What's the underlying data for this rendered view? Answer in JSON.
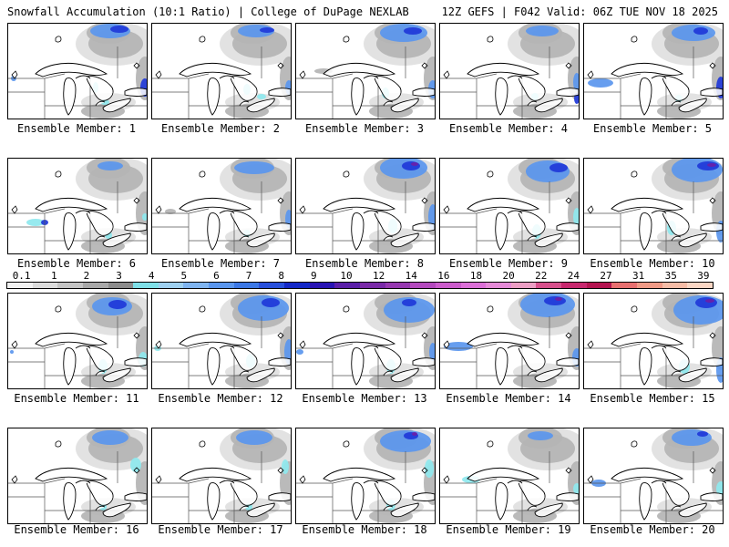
{
  "header": {
    "title_left": "Snowfall Accumulation (10:1 Ratio) | College of DuPage NEXLAB",
    "title_right": "12Z GEFS | F042 Valid: 06Z TUE NOV 18 2025"
  },
  "panel_label_prefix": "Ensemble Member: ",
  "panels": [
    {
      "member": "1",
      "label": "Ensemble Member: 1"
    },
    {
      "member": "2",
      "label": "Ensemble Member: 2"
    },
    {
      "member": "3",
      "label": "Ensemble Member: 3"
    },
    {
      "member": "4",
      "label": "Ensemble Member: 4"
    },
    {
      "member": "5",
      "label": "Ensemble Member: 5"
    },
    {
      "member": "6",
      "label": "Ensemble Member: 6"
    },
    {
      "member": "7",
      "label": "Ensemble Member: 7"
    },
    {
      "member": "8",
      "label": "Ensemble Member: 8"
    },
    {
      "member": "9",
      "label": "Ensemble Member: 9"
    },
    {
      "member": "10",
      "label": "Ensemble Member: 10"
    },
    {
      "member": "11",
      "label": "Ensemble Member: 11"
    },
    {
      "member": "12",
      "label": "Ensemble Member: 12"
    },
    {
      "member": "13",
      "label": "Ensemble Member: 13"
    },
    {
      "member": "14",
      "label": "Ensemble Member: 14"
    },
    {
      "member": "15",
      "label": "Ensemble Member: 15"
    },
    {
      "member": "16",
      "label": "Ensemble Member: 16"
    },
    {
      "member": "17",
      "label": "Ensemble Member: 17"
    },
    {
      "member": "18",
      "label": "Ensemble Member: 18"
    },
    {
      "member": "19",
      "label": "Ensemble Member: 19"
    },
    {
      "member": "20",
      "label": "Ensemble Member: 20"
    }
  ],
  "colorbar": {
    "labels": [
      "0.1",
      "1",
      "2",
      "3",
      "4",
      "5",
      "6",
      "7",
      "8",
      "9",
      "10",
      "12",
      "14",
      "16",
      "18",
      "20",
      "22",
      "24",
      "27",
      "31",
      "35",
      "39"
    ],
    "colors": [
      "#f2f2f2",
      "#dcdcdc",
      "#c4c4c4",
      "#a8a8a8",
      "#8c8c8c",
      "#7fe0e8",
      "#9ed0f0",
      "#7fb4f0",
      "#5a96ee",
      "#3c78e6",
      "#2850dc",
      "#1428c8",
      "#2814b4",
      "#5a1ea8",
      "#7a2aa8",
      "#9638b0",
      "#b44abe",
      "#cc5ccc",
      "#dc70d8",
      "#e68ad8",
      "#ec9ec4",
      "#d8508c",
      "#c8286e",
      "#b41450",
      "#e87070",
      "#f09a86",
      "#f6bca6",
      "#fad6c4"
    ]
  },
  "colors": {
    "snow_light_gray": "#e0e0e0",
    "snow_gray": "#b4b4b4",
    "snow_dark_gray": "#8a8a8a",
    "snow_cyan": "#8ee8ee",
    "snow_blue": "#5a96ee",
    "snow_dark_blue": "#2038d8",
    "snow_purple": "#6a1ea8"
  }
}
